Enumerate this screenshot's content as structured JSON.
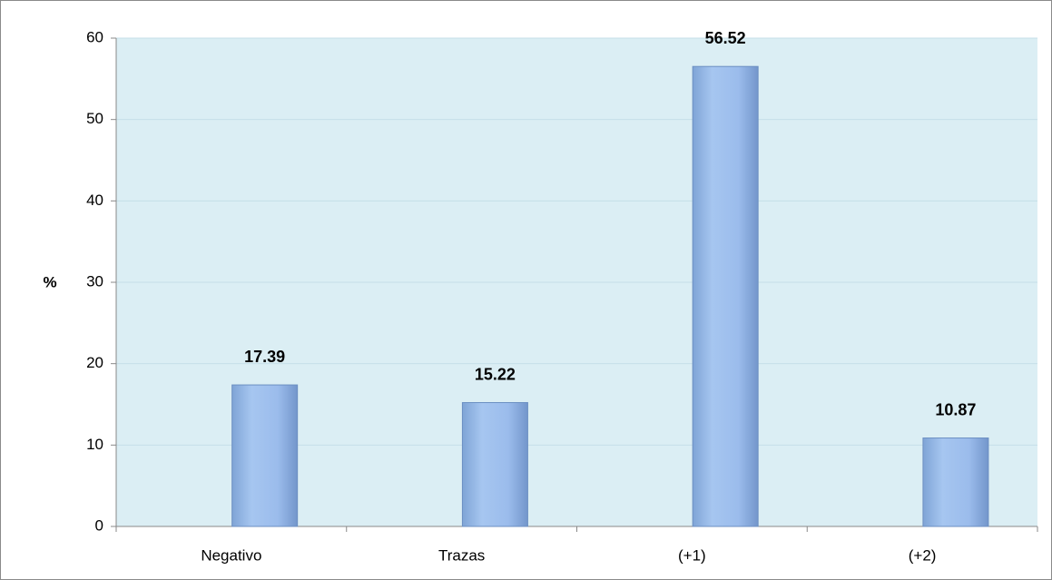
{
  "chart_data": {
    "type": "bar",
    "y_label": "%",
    "categories": [
      "Negativo",
      "Trazas",
      "(+1)",
      "(+2)"
    ],
    "values": [
      17.39,
      15.22,
      56.52,
      10.87
    ],
    "color": "#95b9e8",
    "plot_background": "#dbeef4",
    "ylim": [
      0,
      60
    ],
    "yticks": [
      0,
      10,
      20,
      30,
      40,
      50,
      60
    ],
    "grid": true
  }
}
